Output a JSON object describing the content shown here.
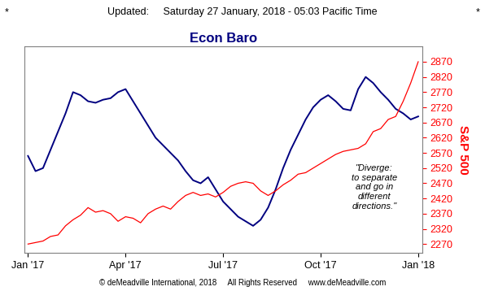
{
  "header": {
    "marks": [
      "*",
      "*"
    ],
    "label": "Updated:",
    "text": "Saturday 27 January, 2018 - 05:03 Pacific Time"
  },
  "footer": [
    "© deMeadville International, 2018",
    "All Rights Reserved",
    "www.deMeadville.com"
  ],
  "chart_data": {
    "type": "line",
    "title": "Econ Baro",
    "y_label": "S&P 500",
    "annotation": "\"Diverge:\nto separate\nand go in\ndifferent\ndirections.\"",
    "categories": [
      "Jan '17",
      null,
      null,
      null,
      null,
      null,
      null,
      null,
      null,
      null,
      null,
      null,
      null,
      "Apr '17",
      null,
      null,
      null,
      null,
      null,
      null,
      null,
      null,
      null,
      null,
      null,
      null,
      "Jul '17",
      null,
      null,
      null,
      null,
      null,
      null,
      null,
      null,
      null,
      null,
      null,
      null,
      "Oct '17",
      null,
      null,
      null,
      null,
      null,
      null,
      null,
      null,
      null,
      null,
      null,
      null,
      "Jan '18"
    ],
    "series": [
      {
        "color": "#000080",
        "values": [
          2560,
          2510,
          2520,
          2580,
          2640,
          2700,
          2770,
          2760,
          2740,
          2735,
          2745,
          2750,
          2770,
          2780,
          2740,
          2700,
          2660,
          2620,
          2595,
          2570,
          2545,
          2510,
          2480,
          2470,
          2490,
          2450,
          2410,
          2385,
          2360,
          2345,
          2330,
          2350,
          2390,
          2450,
          2520,
          2580,
          2630,
          2680,
          2720,
          2745,
          2760,
          2740,
          2715,
          2710,
          2780,
          2820,
          2800,
          2770,
          2745,
          2715,
          2700,
          2680,
          2690
        ]
      },
      {
        "color": "#ff0000",
        "values": [
          2270,
          2275,
          2280,
          2295,
          2300,
          2330,
          2350,
          2365,
          2390,
          2375,
          2380,
          2370,
          2345,
          2360,
          2355,
          2340,
          2370,
          2385,
          2395,
          2385,
          2410,
          2430,
          2440,
          2430,
          2435,
          2425,
          2440,
          2460,
          2470,
          2475,
          2470,
          2445,
          2430,
          2445,
          2465,
          2480,
          2500,
          2505,
          2520,
          2535,
          2550,
          2565,
          2575,
          2580,
          2585,
          2600,
          2640,
          2650,
          2680,
          2690,
          2740,
          2800,
          2870
        ]
      }
    ],
    "ylim": [
      2240,
      2920
    ],
    "yticks": [
      2270,
      2320,
      2370,
      2420,
      2470,
      2520,
      2570,
      2620,
      2670,
      2720,
      2770,
      2820,
      2870
    ],
    "grid": false
  }
}
